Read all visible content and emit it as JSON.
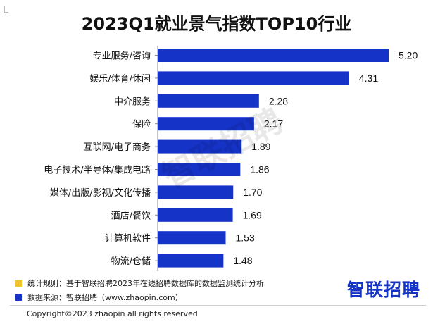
{
  "title": "2023Q1就业景气指数TOP10行业",
  "chart_data": {
    "type": "bar",
    "orientation": "horizontal",
    "title": "2023Q1就业景气指数TOP10行业",
    "categories": [
      "专业服务/咨询",
      "娱乐/体育/休闲",
      "中介服务",
      "保险",
      "互联网/电子商务",
      "电子技术/半导体/集成电路",
      "媒体/出版/影视/文化传播",
      "酒店/餐饮",
      "计算机软件",
      "物流/仓储"
    ],
    "values": [
      5.2,
      4.31,
      2.28,
      2.17,
      1.89,
      1.86,
      1.7,
      1.69,
      1.53,
      1.48
    ],
    "value_labels": [
      "5.20",
      "4.31",
      "2.28",
      "2.17",
      "1.89",
      "1.86",
      "1.70",
      "1.69",
      "1.53",
      "1.48"
    ],
    "xlim": [
      0,
      5.2
    ],
    "grid": false,
    "bar_color": "#1533c6"
  },
  "watermark": "智联招聘",
  "notes": [
    {
      "text": "统计规则：基于智联招聘2023年在线招聘数据库的数据监测统计分析",
      "color": "#f2c230"
    },
    {
      "text": "数据来源：智联招聘（www.zhaopin.com）",
      "color": "#1533c6"
    }
  ],
  "logo": "智联招聘",
  "copyright": "Copyright©2023 zhaopin all rights reserved"
}
